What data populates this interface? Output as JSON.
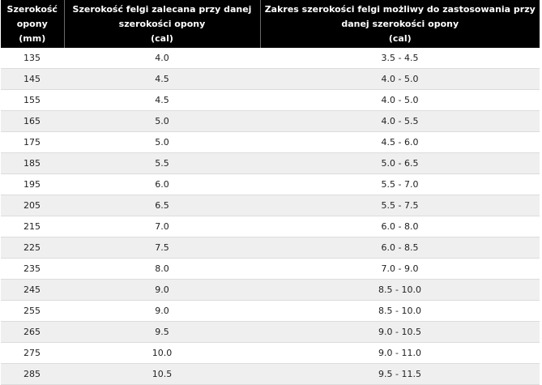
{
  "table": {
    "headers": [
      "Szerokość opony (mm)",
      "Szerokość felgi zalecana przy danej szerokości opony (cal)",
      "Zakres szerokości felgi możliwy do zastosowania przy danej szerokości opony (cal)"
    ],
    "header_lines": [
      [
        "Szerokość",
        "opony",
        "(mm)"
      ],
      [
        "Szerokość felgi zalecana przy danej",
        "szerokości opony",
        "(cal)"
      ],
      [
        "Zakres szerokości felgi możliwy do zastosowania przy",
        "danej szerokości opony",
        "(cal)"
      ]
    ],
    "rows": [
      [
        "135",
        "4.0",
        "3.5 - 4.5"
      ],
      [
        "145",
        "4.5",
        "4.0 - 5.0"
      ],
      [
        "155",
        "4.5",
        "4.0 - 5.0"
      ],
      [
        "165",
        "5.0",
        "4.0 - 5.5"
      ],
      [
        "175",
        "5.0",
        "4.5 - 6.0"
      ],
      [
        "185",
        "5.5",
        "5.0 - 6.5"
      ],
      [
        "195",
        "6.0",
        "5.5 - 7.0"
      ],
      [
        "205",
        "6.5",
        "5.5 - 7.5"
      ],
      [
        "215",
        "7.0",
        "6.0 - 8.0"
      ],
      [
        "225",
        "7.5",
        "6.0 - 8.5"
      ],
      [
        "235",
        "8.0",
        "7.0 - 9.0"
      ],
      [
        "245",
        "9.0",
        "8.5 - 10.0"
      ],
      [
        "255",
        "9.0",
        "8.5 - 10.0"
      ],
      [
        "265",
        "9.5",
        "9.0 - 10.5"
      ],
      [
        "275",
        "10.0",
        "9.0 - 11.0"
      ],
      [
        "285",
        "10.5",
        "9.5 - 11.5"
      ]
    ]
  }
}
